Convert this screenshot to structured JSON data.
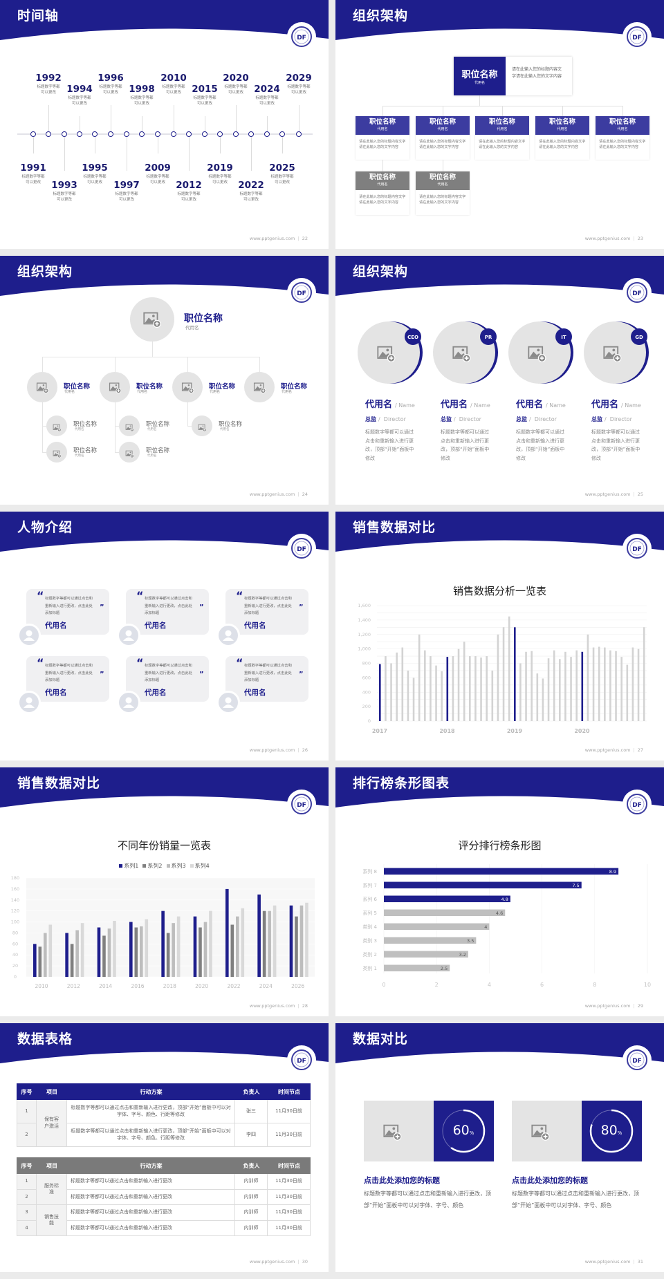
{
  "brand": {
    "primary": "#1e1e8c",
    "card_blue": "#3c3ca0",
    "gray": "#7f7f7f",
    "light_gray": "#e4e4e4"
  },
  "footer_url": "www.pptgenius.com",
  "footer_sep": "|",
  "logo_text": "DF",
  "s22": {
    "title": "时间轴",
    "page": "22",
    "events": [
      {
        "year": "1991",
        "l1": "标题数字等都",
        "l2": "可以更改"
      },
      {
        "year": "1992",
        "l1": "标题数字等都",
        "l2": "可以更改"
      },
      {
        "year": "1993",
        "l1": "标题数字等都",
        "l2": "可以更改"
      },
      {
        "year": "1994",
        "l1": "标题数字等都",
        "l2": "可以更改"
      },
      {
        "year": "1995",
        "l1": "标题数字等都",
        "l2": "可以更改"
      },
      {
        "year": "1996",
        "l1": "标题数字等都",
        "l2": "可以更改"
      },
      {
        "year": "1997",
        "l1": "标题数字等都",
        "l2": "可以更改"
      },
      {
        "year": "1998",
        "l1": "标题数字等都",
        "l2": "可以更改"
      },
      {
        "year": "2009",
        "l1": "标题数字等都",
        "l2": "可以更改"
      },
      {
        "year": "2010",
        "l1": "标题数字等都",
        "l2": "可以更改"
      },
      {
        "year": "2012",
        "l1": "标题数字等都",
        "l2": "可以更改"
      },
      {
        "year": "2015",
        "l1": "标题数字等都",
        "l2": "可以更改"
      },
      {
        "year": "2019",
        "l1": "标题数字等都",
        "l2": "可以更改"
      },
      {
        "year": "2020",
        "l1": "标题数字等都",
        "l2": "可以更改"
      },
      {
        "year": "2022",
        "l1": "标题数字等都",
        "l2": "可以更改"
      },
      {
        "year": "2024",
        "l1": "标题数字等都",
        "l2": "可以更改"
      },
      {
        "year": "2025",
        "l1": "标题数字等都",
        "l2": "可以更改"
      },
      {
        "year": "2029",
        "l1": "标题数字等都",
        "l2": "可以更改"
      }
    ]
  },
  "s23": {
    "title": "组织架构",
    "page": "23",
    "top": {
      "name": "职位名称",
      "alias": "代用名",
      "desc": "请在此输入您的标题内容文字请在此输入您的文字内容"
    },
    "cards": [
      {
        "name": "职位名称",
        "alias": "代用名",
        "desc": "请在此输入您的标题内容文字请在此输入您的文字内容",
        "style": "blue"
      },
      {
        "name": "职位名称",
        "alias": "代用名",
        "desc": "请在此输入您的标题内容文字请在此输入您的文字内容",
        "style": "blue"
      },
      {
        "name": "职位名称",
        "alias": "代用名",
        "desc": "请在此输入您的标题内容文字请在此输入您的文字内容",
        "style": "blue"
      },
      {
        "name": "职位名称",
        "alias": "代用名",
        "desc": "请在此输入您的标题内容文字请在此输入您的文字内容",
        "style": "blue"
      },
      {
        "name": "职位名称",
        "alias": "代用名",
        "desc": "请在此输入您的标题内容文字请在此输入您的文字内容",
        "style": "blue"
      },
      {
        "name": "职位名称",
        "alias": "代用名",
        "desc": "请在此输入您的标题内容文字请在此输入您的文字内容",
        "style": "gray"
      },
      {
        "name": "职位名称",
        "alias": "代用名",
        "desc": "请在此输入您的标题内容文字请在此输入您的文字内容",
        "style": "gray"
      }
    ]
  },
  "s24": {
    "title": "组织架构",
    "page": "24",
    "top": {
      "name": "职位名称",
      "alias": "代用名"
    },
    "level2": [
      {
        "name": "职位名称",
        "alias": "代用名",
        "children": [
          {
            "name": "职位名称",
            "alias": "代用名"
          },
          {
            "name": "职位名称",
            "alias": "代用名"
          }
        ]
      },
      {
        "name": "职位名称",
        "alias": "代用名",
        "children": [
          {
            "name": "职位名称",
            "alias": "代用名"
          },
          {
            "name": "职位名称",
            "alias": "代用名"
          }
        ]
      },
      {
        "name": "职位名称",
        "alias": "代用名",
        "children": [
          {
            "name": "职位名称",
            "alias": "代用名"
          }
        ]
      },
      {
        "name": "职位名称",
        "alias": "代用名",
        "children": []
      }
    ]
  },
  "s25": {
    "title": "组织架构",
    "page": "25",
    "people": [
      {
        "badge": "CEO",
        "name": "代用名",
        "name_en": "/ Name",
        "role": "总监",
        "role_en": "/  Director",
        "desc": "标题数字等都可以通过点击和重新输入进行更改，顶部“开始”面板中修改"
      },
      {
        "badge": "PR",
        "name": "代用名",
        "name_en": "/ Name",
        "role": "总监",
        "role_en": "/  Director",
        "desc": "标题数字等都可以通过点击和重新输入进行更改，顶部“开始”面板中修改"
      },
      {
        "badge": "IT",
        "name": "代用名",
        "name_en": "/ Name",
        "role": "总监",
        "role_en": "/  Director",
        "desc": "标题数字等都可以通过点击和重新输入进行更改，顶部“开始”面板中修改"
      },
      {
        "badge": "GD",
        "name": "代用名",
        "name_en": "/ Name",
        "role": "总监",
        "role_en": "/  Director",
        "desc": "标题数字等都可以通过点击和重新输入进行更改，顶部“开始”面板中修改"
      }
    ]
  },
  "s26": {
    "title": "人物介绍",
    "page": "26",
    "open_quote": "“",
    "close_quote": "”",
    "cards": [
      {
        "quote": "标题数字等都可以通过点击和重新输入进行更改，点击此处添加标题",
        "name": "代用名"
      },
      {
        "quote": "标题数字等都可以通过点击和重新输入进行更改，点击此处添加标题",
        "name": "代用名"
      },
      {
        "quote": "标题数字等都可以通过点击和重新输入进行更改，点击此处添加标题",
        "name": "代用名"
      },
      {
        "quote": "标题数字等都可以通过点击和重新输入进行更改，点击此处添加标题",
        "name": "代用名"
      },
      {
        "quote": "标题数字等都可以通过点击和重新输入进行更改，点击此处添加标题",
        "name": "代用名"
      },
      {
        "quote": "标题数字等都可以通过点击和重新输入进行更改，点击此处添加标题",
        "name": "代用名"
      }
    ]
  },
  "s27": {
    "title": "销售数据对比",
    "page": "27"
  },
  "s28": {
    "title": "销售数据对比",
    "page": "28"
  },
  "s29": {
    "title": "排行榜条形图表",
    "page": "29"
  },
  "s30": {
    "title": "数据表格",
    "page": "30",
    "headers": [
      "序号",
      "项目",
      "行动方案",
      "负责人",
      "时间节点"
    ],
    "table1": {
      "groups": [
        {
          "project": "保有客户激活",
          "rows": [
            {
              "no": "1",
              "plan": "标题数字等都可以通过点击和重新输入进行更改，顶部“开始”面板中可以对字体、字号、颜色、行距等修改",
              "owner": "张三",
              "due": "11月30日前"
            },
            {
              "no": "2",
              "plan": "标题数字等都可以通过点击和重新输入进行更改，顶部“开始”面板中可以对字体、字号、颜色、行距等修改",
              "owner": "李四",
              "due": "11月30日前"
            }
          ]
        }
      ]
    },
    "table2": {
      "groups": [
        {
          "project": "服务标准",
          "rows": [
            {
              "no": "1",
              "plan": "标题数字等都可以通过点击和重新输入进行更改",
              "owner": "内训师",
              "due": "11月30日前"
            },
            {
              "no": "2",
              "plan": "标题数字等都可以通过点击和重新输入进行更改",
              "owner": "内训师",
              "due": "11月30日前"
            }
          ]
        },
        {
          "project": "销售技能",
          "rows": [
            {
              "no": "3",
              "plan": "标题数字等都可以通过点击和重新输入进行更改",
              "owner": "内训师",
              "due": "11月30日前"
            },
            {
              "no": "4",
              "plan": "标题数字等都可以通过点击和重新输入进行更改",
              "owner": "内训师",
              "due": "11月30日前"
            }
          ]
        }
      ]
    }
  },
  "s31": {
    "title": "数据对比",
    "page": "31",
    "items": [
      {
        "percent": 60,
        "value": "60",
        "unit": "%",
        "title": "点击此处添加您的标题",
        "desc": "标题数字等都可以通过点击和重新输入进行更改，顶部“开始”面板中可以对字体、字号、颜色"
      },
      {
        "percent": 80,
        "value": "80",
        "unit": "%",
        "title": "点击此处添加您的标题",
        "desc": "标题数字等都可以通过点击和重新输入进行更改，顶部“开始”面板中可以对字体、字号、颜色"
      }
    ]
  },
  "chart_data": [
    {
      "type": "bar",
      "title": "销售数据分析一览表",
      "x_tick_labels": [
        "2017",
        "2018",
        "2019",
        "2020"
      ],
      "y_tick_labels": [
        "0",
        "200",
        "400",
        "600",
        "800",
        "1,000",
        "1,200",
        "1,400",
        "1,600"
      ],
      "ylim": [
        0,
        1600
      ],
      "grid": true,
      "highlight_color": "#1e1e8c",
      "bar_color": "#d3d3d3",
      "values": [
        790,
        900,
        800,
        950,
        1020,
        700,
        600,
        1200,
        980,
        900,
        770,
        690,
        890,
        900,
        1000,
        1100,
        900,
        900,
        880,
        900,
        700,
        1200,
        1300,
        1450,
        1300,
        800,
        960,
        970,
        660,
        590,
        870,
        980,
        860,
        960,
        890,
        980,
        960,
        1200,
        1020,
        1030,
        1020,
        980,
        970,
        890,
        780,
        1020,
        1000,
        1300
      ]
    },
    {
      "type": "bar",
      "title": "不同年份销量一览表",
      "categories": [
        "2010",
        "2012",
        "2014",
        "2016",
        "2018",
        "2020",
        "2022",
        "2024",
        "2026"
      ],
      "y_tick_labels": [
        "0",
        "20",
        "40",
        "60",
        "80",
        "100",
        "120",
        "140",
        "160",
        "180"
      ],
      "ylim": [
        0,
        180
      ],
      "legend": "top",
      "series": [
        {
          "name": "系列1",
          "color": "#1e1e8c",
          "values": [
            60,
            80,
            90,
            100,
            120,
            110,
            160,
            150,
            130
          ]
        },
        {
          "name": "系列2",
          "color": "#808080",
          "values": [
            55,
            60,
            75,
            90,
            80,
            90,
            95,
            120,
            110
          ]
        },
        {
          "name": "系列3",
          "color": "#bdbdbd",
          "values": [
            80,
            85,
            88,
            92,
            98,
            100,
            110,
            120,
            130
          ]
        },
        {
          "name": "系列4",
          "color": "#d9d9d9",
          "values": [
            95,
            98,
            102,
            105,
            110,
            120,
            125,
            130,
            135
          ]
        }
      ]
    },
    {
      "type": "bar",
      "orientation": "horizontal",
      "title": "评分排行榜条形图",
      "categories": [
        "类别 1",
        "类别 2",
        "类别 3",
        "类别 4",
        "系列 5",
        "系列 6",
        "系列 7",
        "系列 8"
      ],
      "values": [
        2.5,
        3.2,
        3.5,
        4,
        4.6,
        4.8,
        7.5,
        8.9
      ],
      "data_labels": [
        "2.5",
        "3.2",
        "3.5",
        "4",
        "4.6",
        "4.8",
        "7.5",
        "8.9"
      ],
      "highlight": [
        "系列 6",
        "系列 7",
        "系列 8"
      ],
      "x_tick_labels": [
        "0",
        "2",
        "4",
        "6",
        "8",
        "10"
      ],
      "xlim": [
        0,
        10
      ],
      "grid": true
    }
  ]
}
